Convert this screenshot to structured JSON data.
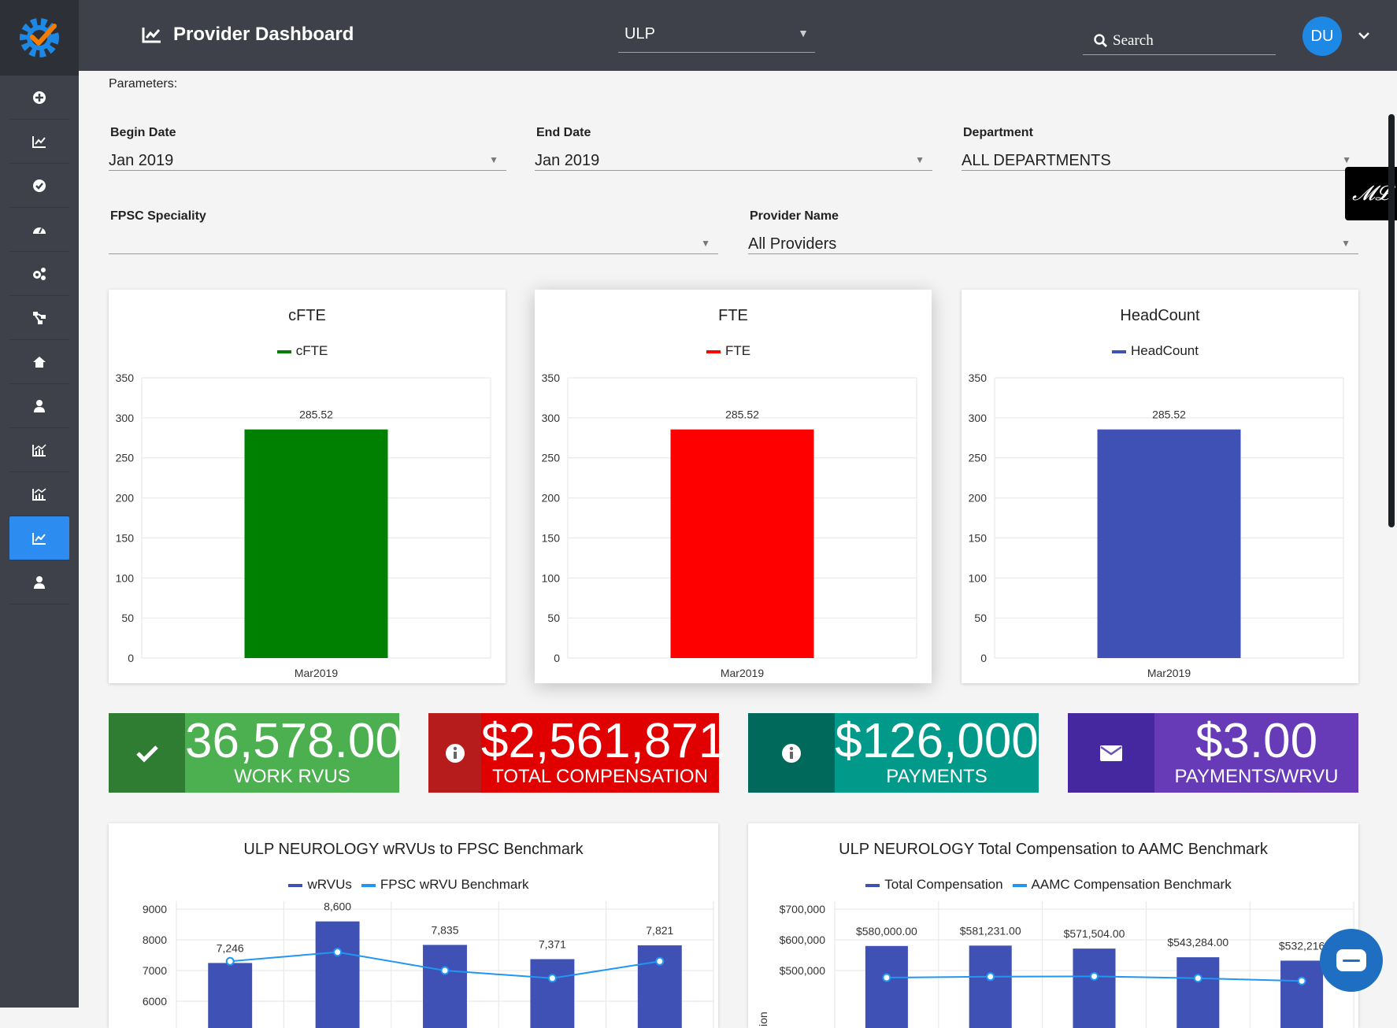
{
  "app": {
    "title": "Provider Dashboard",
    "org_select": "ULP",
    "search_label": "Search",
    "user_initials": "DU"
  },
  "sidebar": {
    "items": [
      {
        "icon": "plus-circle-icon",
        "active": false
      },
      {
        "icon": "line-chart-icon",
        "active": false
      },
      {
        "icon": "check-circle-icon",
        "active": false
      },
      {
        "icon": "dashboard-gauge-icon",
        "active": false
      },
      {
        "icon": "cogs-icon",
        "active": false
      },
      {
        "icon": "sitemap-icon",
        "active": false
      },
      {
        "icon": "home-icon",
        "active": false
      },
      {
        "icon": "user-icon",
        "active": false
      },
      {
        "icon": "bar-line-chart-icon",
        "active": false
      },
      {
        "icon": "area-chart-icon",
        "active": false
      },
      {
        "icon": "line-chart-icon",
        "active": true
      },
      {
        "icon": "user-icon",
        "active": false
      }
    ]
  },
  "parameters": {
    "heading": "Parameters:",
    "begin_date": {
      "label": "Begin Date",
      "value": "Jan 2019"
    },
    "end_date": {
      "label": "End Date",
      "value": "Jan 2019"
    },
    "department": {
      "label": "Department",
      "value": "ALL DEPARTMENTS"
    },
    "fpsc_speciality": {
      "label": "FPSC Speciality",
      "value": ""
    },
    "provider_name": {
      "label": "Provider Name",
      "value": "All Providers"
    }
  },
  "chart_data": [
    {
      "type": "bar",
      "title": "cFTE",
      "categories": [
        "Mar2019"
      ],
      "series": [
        {
          "name": "cFTE",
          "values": [
            285.52
          ],
          "color": "#008000"
        }
      ],
      "data_labels": [
        "285.52"
      ],
      "ylim": [
        0,
        350
      ],
      "yticks": [
        "350",
        "300",
        "250",
        "200",
        "150",
        "100",
        "50",
        "0"
      ],
      "grid": true,
      "legend": "top"
    },
    {
      "type": "bar",
      "title": "FTE",
      "categories": [
        "Mar2019"
      ],
      "series": [
        {
          "name": "FTE",
          "values": [
            285.52
          ],
          "color": "#ff0000"
        }
      ],
      "data_labels": [
        "285.52"
      ],
      "ylim": [
        0,
        350
      ],
      "yticks": [
        "350",
        "300",
        "250",
        "200",
        "150",
        "100",
        "50",
        "0"
      ],
      "grid": true,
      "legend": "top"
    },
    {
      "type": "bar",
      "title": "HeadCount",
      "categories": [
        "Mar2019"
      ],
      "series": [
        {
          "name": "HeadCount",
          "values": [
            285.52
          ],
          "color": "#3f51b5"
        }
      ],
      "data_labels": [
        "285.52"
      ],
      "ylim": [
        0,
        350
      ],
      "yticks": [
        "350",
        "300",
        "250",
        "200",
        "150",
        "100",
        "50",
        "0"
      ],
      "grid": true,
      "legend": "top"
    },
    {
      "type": "bar",
      "title": "ULP NEUROLOGY wRVUs to FPSC Benchmark",
      "series": [
        {
          "name": "wRVUs",
          "type": "bar",
          "values": [
            7246,
            8600,
            7835,
            7371,
            7821
          ],
          "color": "#3f51b5"
        },
        {
          "name": "FPSC wRVU Benchmark",
          "type": "line",
          "values": [
            7300,
            7600,
            7000,
            6750,
            7300
          ],
          "color": "#2196f3"
        }
      ],
      "data_labels": [
        "7,246",
        "8,600",
        "7,835",
        "7,371",
        "7,821"
      ],
      "yticks": [
        "9000",
        "8000",
        "7000",
        "6000"
      ],
      "ylim": [
        6000,
        9000
      ],
      "grid": true,
      "legend": "top"
    },
    {
      "type": "bar",
      "title": "ULP NEUROLOGY Total Compensation to AAMC Benchmark",
      "ylabel": "ion",
      "series": [
        {
          "name": "Total Compensation",
          "type": "bar",
          "values": [
            580000,
            581231,
            571504,
            543284,
            532216
          ],
          "color": "#3f51b5"
        },
        {
          "name": "AAMC Compensation Benchmark",
          "type": "line",
          "values": [
            477000,
            480000,
            481000,
            475000,
            466000
          ],
          "color": "#2196f3"
        }
      ],
      "data_labels": [
        "$580,000.00",
        "$581,231.00",
        "$571,504.00",
        "$543,284.00",
        "$532,216"
      ],
      "yticks": [
        "$700,000",
        "$600,000",
        "$500,000"
      ],
      "ylim": [
        450000,
        700000
      ],
      "grid": true,
      "legend": "top"
    }
  ],
  "stats": [
    {
      "value": "36,578.00",
      "label": "WORK RVUS",
      "icon": "check-icon",
      "icon_bg": "#2e7d32",
      "bg": "#4caf50"
    },
    {
      "value": "$2,561,871",
      "label": "TOTAL COMPENSATION",
      "icon": "info-circle-icon",
      "icon_bg": "#b71c1c",
      "bg": "#e00000"
    },
    {
      "value": "$126,000",
      "label": "PAYMENTS",
      "icon": "info-circle-icon",
      "icon_bg": "#00695c",
      "bg": "#00998a"
    },
    {
      "value": "$3.00",
      "label": "PAYMENTS/WRVU",
      "icon": "envelope-icon",
      "icon_bg": "#4527a0",
      "bg": "#673ab7"
    }
  ]
}
